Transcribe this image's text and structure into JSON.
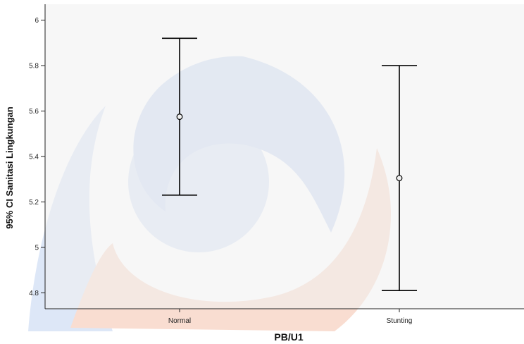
{
  "chart_data": {
    "type": "errorbar",
    "xlabel": "PB/U1",
    "ylabel": "95% CI Sanitasi Lingkungan",
    "categories": [
      "Normal",
      "Stunting"
    ],
    "means": [
      5.575,
      5.305
    ],
    "ci_lower": [
      5.23,
      4.81
    ],
    "ci_upper": [
      5.92,
      5.8
    ],
    "ylim": [
      4.73,
      6.07
    ],
    "yticks": [
      4.8,
      5,
      5.2,
      5.4,
      5.6,
      5.8,
      6
    ],
    "ytick_labels": [
      "4.8",
      "5",
      "5.2",
      "5.4",
      "5.6",
      "5.8",
      "6"
    ],
    "grid": false,
    "colors": {
      "plot_background": "#f0f0f0",
      "axis": "#222222",
      "marks": "#000000",
      "watermark_blue": "#9db8e6",
      "watermark_orange": "#f2b49a"
    }
  }
}
